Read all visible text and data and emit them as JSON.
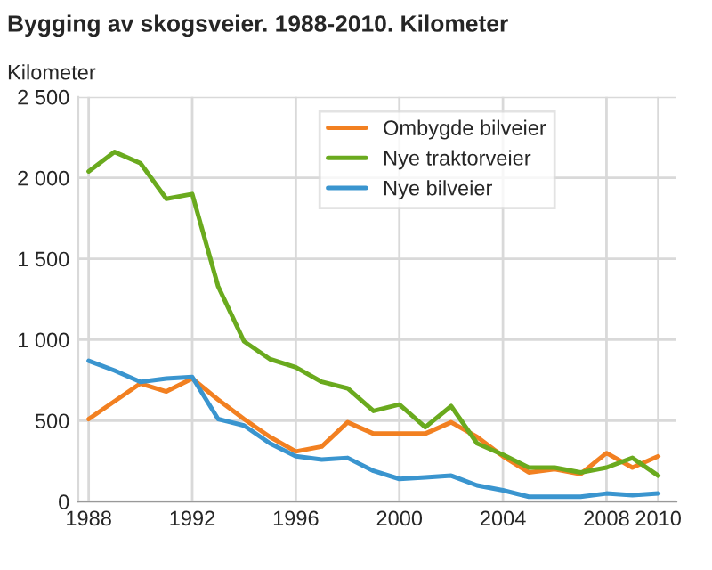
{
  "chart_data": {
    "type": "line",
    "title": "Bygging av skogsveier. 1988-2010. Kilometer",
    "ylabel": "Kilometer",
    "x": [
      1988,
      1989,
      1990,
      1991,
      1992,
      1993,
      1994,
      1995,
      1996,
      1997,
      1998,
      1999,
      2000,
      2001,
      2002,
      2003,
      2004,
      2005,
      2006,
      2007,
      2008,
      2009,
      2010
    ],
    "series": [
      {
        "name": "Ombygde bilveier",
        "color": "#f28021",
        "values": [
          510,
          620,
          730,
          680,
          760,
          630,
          510,
          400,
          310,
          340,
          490,
          420,
          420,
          420,
          490,
          400,
          280,
          180,
          200,
          170,
          300,
          210,
          280
        ]
      },
      {
        "name": "Nye traktorveier",
        "color": "#6aaa1e",
        "values": [
          2040,
          2160,
          2090,
          1870,
          1900,
          1330,
          990,
          880,
          830,
          740,
          700,
          560,
          600,
          460,
          590,
          360,
          290,
          210,
          210,
          180,
          210,
          270,
          160
        ]
      },
      {
        "name": "Nye bilveier",
        "color": "#3a95cf",
        "values": [
          870,
          810,
          740,
          760,
          770,
          510,
          470,
          360,
          280,
          260,
          270,
          190,
          140,
          150,
          160,
          100,
          70,
          30,
          30,
          30,
          50,
          40,
          50
        ]
      }
    ],
    "xlim": [
      1987.6,
      2010.7
    ],
    "xticks": [
      1988,
      1992,
      1996,
      2000,
      2004,
      2008,
      2010
    ],
    "ylim": [
      0,
      2500
    ],
    "yticks": [
      {
        "value": 0,
        "label": "0"
      },
      {
        "value": 500,
        "label": "500"
      },
      {
        "value": 1000,
        "label": "1 000"
      },
      {
        "value": 1500,
        "label": "1 500"
      },
      {
        "value": 2000,
        "label": "2 000"
      },
      {
        "value": 2500,
        "label": "2 500"
      }
    ],
    "grid": true,
    "legend": "top",
    "marker": "none",
    "line_style": "solid"
  }
}
